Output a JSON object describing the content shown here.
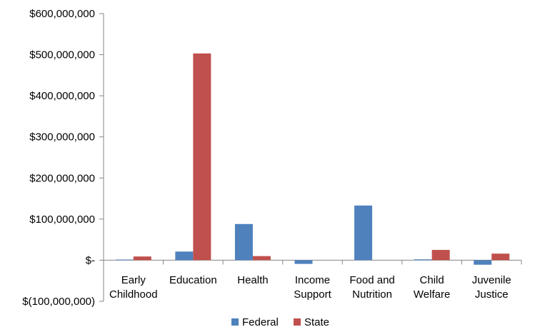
{
  "chart_data": {
    "type": "bar",
    "categories": [
      [
        "Early",
        "Childhood"
      ],
      [
        "Education"
      ],
      [
        "Health"
      ],
      [
        "Income",
        "Support"
      ],
      [
        "Food and",
        "Nutrition"
      ],
      [
        "Child",
        "Welfare"
      ],
      [
        "Juvenile",
        "Justice"
      ]
    ],
    "series": [
      {
        "name": "Federal",
        "color": "#4F81BD",
        "values": [
          1500000,
          21000000,
          88000000,
          -9000000,
          133000000,
          2000000,
          -11000000
        ]
      },
      {
        "name": "State",
        "color": "#C0504D",
        "values": [
          9000000,
          503000000,
          10000000,
          0,
          0,
          25000000,
          16000000
        ]
      }
    ],
    "ylim": [
      -100000000,
      600000000
    ],
    "yticks": [
      600000000,
      500000000,
      400000000,
      300000000,
      200000000,
      100000000,
      0,
      -100000000
    ],
    "ytick_labels": [
      "$600,000,000",
      "$500,000,000",
      "$400,000,000",
      "$300,000,000",
      "$200,000,000",
      "$100,000,000",
      "$-",
      "$(100,000,000)"
    ],
    "grid": false,
    "legend_position": "bottom"
  }
}
